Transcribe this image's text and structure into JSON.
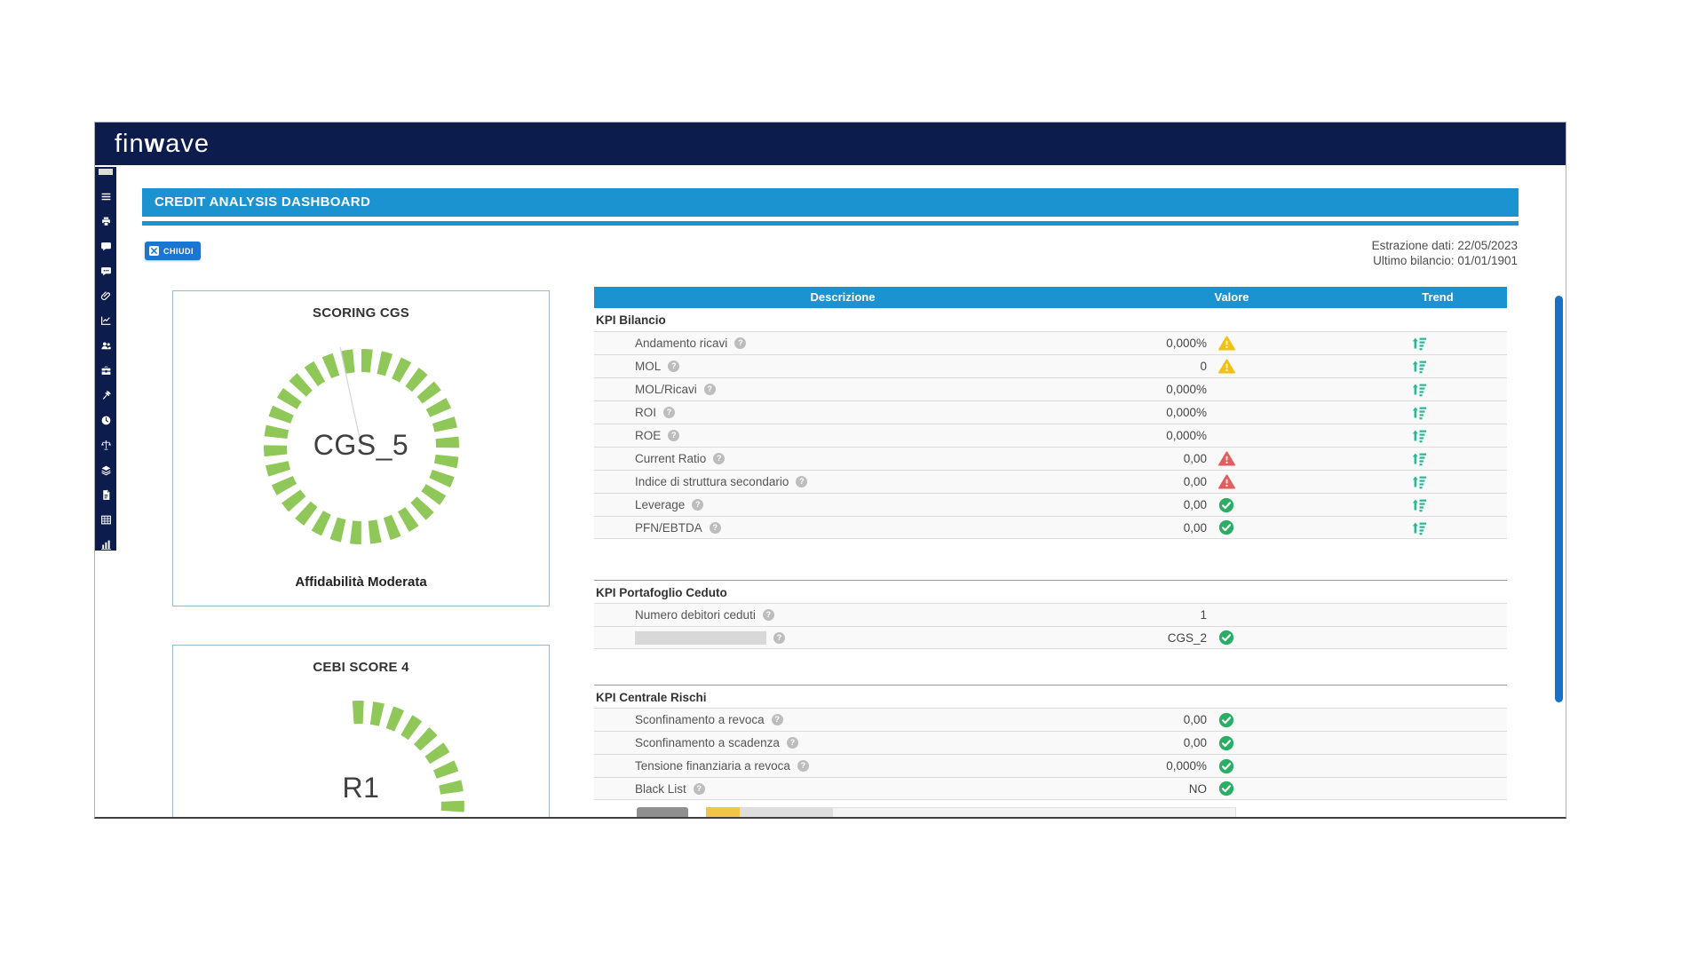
{
  "app": {
    "logo": {
      "fin": "fin",
      "w": "w",
      "ave": "ave"
    },
    "page_title": "CREDIT ANALYSIS DASHBOARD"
  },
  "toolbar": {
    "close_button": "CHIUDI",
    "extraction_date": "Estrazione dati: 22/05/2023",
    "last_balance": "Ultimo bilancio: 01/01/1901"
  },
  "sidebar": {
    "icons": [
      "menu-icon",
      "printer-icon",
      "comment-icon",
      "chat-dots-icon",
      "paperclip-icon",
      "chart-line-icon",
      "users-icon",
      "briefcase-icon",
      "gavel-icon",
      "clock-icon",
      "scales-icon",
      "layers-icon",
      "document-icon",
      "table-icon",
      "bar-chart-icon"
    ]
  },
  "cards": [
    {
      "title": "SCORING CGS",
      "score": "CGS_5",
      "caption": "Affidabilità Moderata",
      "gauge_type": "full-ring",
      "gauge_color": "#8fc858"
    },
    {
      "title": "CEBI SCORE 4",
      "score": "R1",
      "caption": "",
      "gauge_type": "partial-ring",
      "gauge_color": "#8fc858"
    }
  ],
  "table": {
    "columns": [
      "Descrizione",
      "Valore",
      "Trend"
    ],
    "sections": [
      {
        "title": "KPI Bilancio",
        "rows": [
          {
            "label": "Andamento ricavi",
            "value": "0,000%",
            "status": "warning",
            "trend": true
          },
          {
            "label": "MOL",
            "value": "0",
            "status": "warning",
            "trend": true
          },
          {
            "label": "MOL/Ricavi",
            "value": "0,000%",
            "status": "none",
            "trend": true
          },
          {
            "label": "ROI",
            "value": "0,000%",
            "status": "none",
            "trend": true
          },
          {
            "label": "ROE",
            "value": "0,000%",
            "status": "none",
            "trend": true
          },
          {
            "label": "Current Ratio",
            "value": "0,00",
            "status": "danger",
            "trend": true
          },
          {
            "label": "Indice di struttura secondario",
            "value": "0,00",
            "status": "danger",
            "trend": true
          },
          {
            "label": "Leverage",
            "value": "0,00",
            "status": "ok",
            "trend": true
          },
          {
            "label": "PFN/EBTDA",
            "value": "0,00",
            "status": "ok",
            "trend": true
          }
        ]
      },
      {
        "title": "KPI Portafoglio Ceduto",
        "rows": [
          {
            "label": "Numero debitori ceduti",
            "value": "1",
            "status": "none",
            "trend": false
          },
          {
            "label": "",
            "redacted": true,
            "value": "CGS_2",
            "status": "ok",
            "trend": false
          }
        ]
      },
      {
        "title": "KPI Centrale Rischi",
        "rows": [
          {
            "label": "Sconfinamento a revoca",
            "value": "0,00",
            "status": "ok",
            "trend": false
          },
          {
            "label": "Sconfinamento a scadenza",
            "value": "0,00",
            "status": "ok",
            "trend": false
          },
          {
            "label": "Tensione finanziaria a revoca",
            "value": "0,000%",
            "status": "ok",
            "trend": false
          },
          {
            "label": "Black List",
            "value": "NO",
            "status": "ok",
            "trend": false
          }
        ]
      }
    ]
  },
  "colors": {
    "header_navy": "#0c1c4d",
    "primary_blue": "#1b93d0",
    "button_blue": "#1976d2",
    "gauge_green": "#8fc858",
    "status_ok": "#2aad64",
    "status_warning": "#f3c111",
    "status_danger": "#e25d5d",
    "trend_green": "#29b795"
  }
}
